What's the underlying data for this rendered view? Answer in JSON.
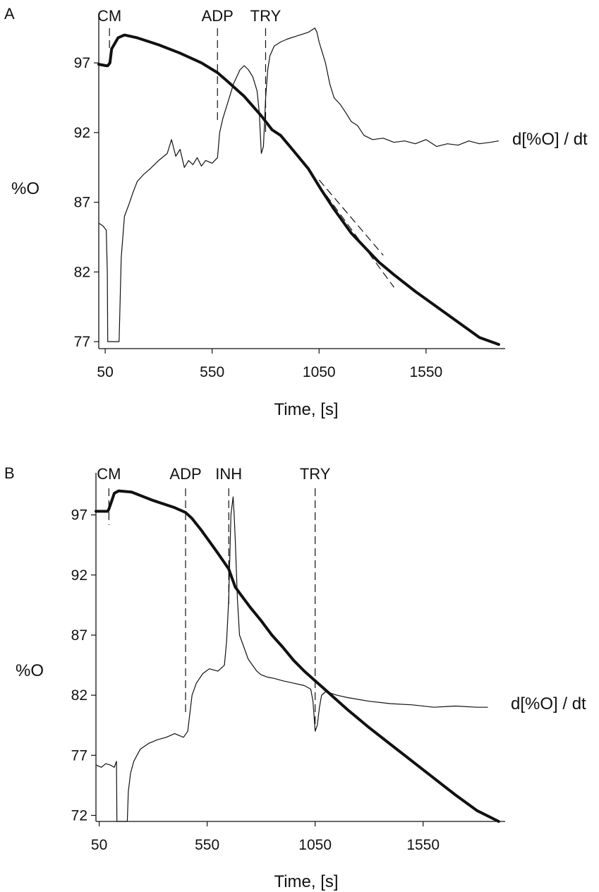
{
  "chart_data": [
    {
      "panel": "A",
      "type": "line",
      "xlabel": "Time, [s]",
      "ylabel": "%O",
      "xlim": [
        20,
        1920
      ],
      "ylim": [
        76.5,
        100.5
      ],
      "x_ticks": [
        50,
        550,
        1050,
        1550
      ],
      "y_ticks": [
        77,
        82,
        87,
        92,
        97
      ],
      "events": [
        {
          "label": "CM",
          "x": 70
        },
        {
          "label": "ADP",
          "x": 575
        },
        {
          "label": "TRY",
          "x": 800
        }
      ],
      "series_label": "d[%O] / dt",
      "series": [
        {
          "style": "thick",
          "x": [
            20,
            55,
            62,
            72,
            80,
            110,
            140,
            200,
            300,
            400,
            500,
            575,
            620,
            700,
            780,
            830,
            870,
            930,
            1000,
            1060,
            1120,
            1200,
            1280,
            1330,
            1400,
            1500,
            1600,
            1700,
            1800,
            1890
          ],
          "y": [
            96.9,
            96.8,
            96.8,
            97.0,
            98.0,
            98.8,
            99.0,
            98.8,
            98.3,
            97.7,
            97.0,
            96.3,
            95.7,
            94.6,
            93.2,
            92.2,
            91.8,
            90.7,
            89.4,
            87.9,
            86.5,
            84.8,
            83.5,
            82.7,
            81.8,
            80.6,
            79.5,
            78.4,
            77.3,
            76.8
          ]
        },
        {
          "style": "thin",
          "x": [
            20,
            40,
            55,
            60,
            62,
            65,
            80,
            100,
            115,
            120,
            125,
            140,
            160,
            180,
            200,
            230,
            260,
            300,
            340,
            360,
            380,
            400,
            420,
            440,
            460,
            480,
            500,
            520,
            550,
            575,
            585,
            600,
            620,
            650,
            680,
            700,
            720,
            740,
            760,
            770,
            780,
            790,
            800,
            810,
            820,
            840,
            870,
            900,
            940,
            980,
            1000,
            1030,
            1040,
            1050,
            1060,
            1080,
            1100,
            1120,
            1150,
            1180,
            1200,
            1230,
            1260,
            1300,
            1350,
            1400,
            1450,
            1500,
            1550,
            1600,
            1650,
            1700,
            1750,
            1800,
            1850,
            1890
          ],
          "y": [
            85.5,
            85.3,
            85.0,
            82.0,
            77.0,
            77.0,
            77.0,
            77.0,
            77.0,
            80.0,
            83.0,
            86.0,
            86.8,
            87.7,
            88.5,
            89.0,
            89.4,
            90.0,
            90.5,
            91.5,
            90.3,
            90.8,
            89.5,
            90.0,
            89.7,
            90.2,
            89.6,
            90.0,
            89.8,
            90.2,
            92.0,
            93.0,
            94.0,
            95.5,
            96.5,
            96.8,
            96.5,
            96.0,
            95.0,
            93.5,
            90.5,
            91.0,
            94.5,
            96.5,
            97.5,
            98.2,
            98.5,
            98.7,
            98.9,
            99.1,
            99.2,
            99.5,
            99.2,
            98.5,
            98.0,
            97.0,
            95.5,
            94.5,
            94.0,
            93.3,
            92.8,
            92.5,
            91.8,
            91.5,
            91.6,
            91.3,
            91.4,
            91.2,
            91.5,
            91.0,
            91.2,
            91.1,
            91.4,
            91.2,
            91.3,
            91.4
          ]
        },
        {
          "style": "dashed",
          "x": [
            1050,
            1350
          ],
          "y": [
            88.6,
            83.2
          ]
        },
        {
          "style": "dashed",
          "x": [
            1050,
            1400
          ],
          "y": [
            88.2,
            80.9
          ]
        }
      ]
    },
    {
      "panel": "B",
      "type": "line",
      "xlabel": "Time, [s]",
      "ylabel": "%O",
      "xlim": [
        35,
        1930
      ],
      "ylim": [
        71.5,
        100.5
      ],
      "x_ticks": [
        50,
        550,
        1050,
        1550
      ],
      "y_ticks": [
        72,
        77,
        82,
        87,
        92,
        97
      ],
      "events": [
        {
          "label": "CM",
          "x": 95
        },
        {
          "label": "ADP",
          "x": 450
        },
        {
          "label": "INH",
          "x": 650
        },
        {
          "label": "TRY",
          "x": 1050
        }
      ],
      "series_label": "d[%O] / dt",
      "series": [
        {
          "style": "thick",
          "x": [
            35,
            90,
            95,
            105,
            120,
            140,
            200,
            300,
            400,
            450,
            480,
            520,
            560,
            600,
            650,
            680,
            700,
            750,
            800,
            850,
            900,
            950,
            1000,
            1050,
            1100,
            1150,
            1200,
            1300,
            1400,
            1500,
            1600,
            1700,
            1800,
            1900
          ],
          "y": [
            97.3,
            97.3,
            97.5,
            98.0,
            98.8,
            99.0,
            98.9,
            98.2,
            97.6,
            97.2,
            96.7,
            95.8,
            94.8,
            93.8,
            92.5,
            91.0,
            90.5,
            89.3,
            88.2,
            87.0,
            86.0,
            84.9,
            84.0,
            83.2,
            82.4,
            81.6,
            80.8,
            79.3,
            77.9,
            76.5,
            75.1,
            73.7,
            72.4,
            71.5
          ]
        },
        {
          "style": "thin",
          "x": [
            35,
            60,
            80,
            100,
            120,
            130,
            132,
            135,
            170,
            180,
            185,
            195,
            210,
            240,
            280,
            320,
            360,
            400,
            440,
            460,
            480,
            500,
            530,
            560,
            600,
            630,
            640,
            650,
            660,
            670,
            675,
            680,
            690,
            700,
            720,
            740,
            760,
            780,
            800,
            830,
            860,
            900,
            950,
            1000,
            1030,
            1040,
            1050,
            1060,
            1070,
            1080,
            1100,
            1150,
            1200,
            1300,
            1400,
            1500,
            1600,
            1700,
            1800,
            1850
          ],
          "y": [
            76.2,
            76.0,
            76.3,
            76.2,
            76.0,
            76.5,
            71.5,
            71.5,
            71.5,
            71.5,
            74.0,
            75.5,
            76.5,
            77.5,
            78.0,
            78.3,
            78.5,
            78.8,
            78.5,
            79.0,
            82.0,
            83.0,
            83.8,
            84.2,
            84.0,
            84.5,
            86.5,
            90.0,
            97.0,
            98.5,
            97.0,
            95.0,
            90.0,
            87.0,
            86.0,
            85.0,
            84.5,
            84.0,
            83.7,
            83.5,
            83.4,
            83.2,
            83.0,
            82.8,
            82.5,
            81.5,
            79.0,
            79.5,
            81.0,
            82.0,
            82.3,
            82.0,
            81.8,
            81.5,
            81.3,
            81.2,
            81.0,
            81.1,
            81.0,
            81.0
          ]
        }
      ]
    }
  ]
}
